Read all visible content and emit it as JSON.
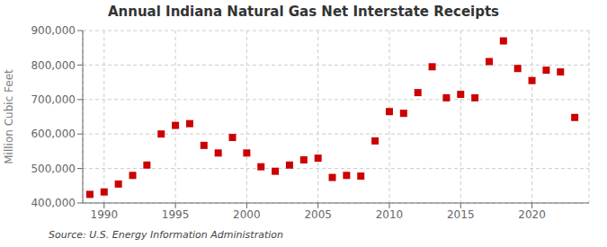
{
  "chart_data": {
    "type": "scatter",
    "title": "Annual Indiana Natural Gas Net Interstate Receipts",
    "y_label": "Million Cubic Feet",
    "annotations": [
      "Source: U.S. Energy Information Administration"
    ],
    "x": [
      1989,
      1990,
      1991,
      1992,
      1993,
      1994,
      1995,
      1996,
      1997,
      1998,
      1999,
      2000,
      2001,
      2002,
      2003,
      2004,
      2005,
      2006,
      2007,
      2008,
      2009,
      2010,
      2011,
      2012,
      2013,
      2014,
      2015,
      2016,
      2017,
      2018,
      2019,
      2020,
      2021,
      2022,
      2023
    ],
    "values": [
      425000,
      432000,
      455000,
      480000,
      510000,
      600000,
      625000,
      630000,
      567000,
      545000,
      590000,
      545000,
      505000,
      492000,
      510000,
      525000,
      530000,
      474000,
      480000,
      478000,
      580000,
      665000,
      660000,
      720000,
      795000,
      705000,
      715000,
      705000,
      810000,
      870000,
      790000,
      755000,
      785000,
      780000,
      648000
    ],
    "color": "#cc0000",
    "marker": "square",
    "xlim": [
      1988.5,
      2024
    ],
    "ylim": [
      400000,
      900000
    ],
    "xticks": [
      1990,
      1995,
      2000,
      2005,
      2010,
      2015,
      2020
    ],
    "yticks": [
      {
        "value": 400000,
        "label": "400,000"
      },
      {
        "value": 500000,
        "label": "500,000"
      },
      {
        "value": 600000,
        "label": "600,000"
      },
      {
        "value": 700000,
        "label": "700,000"
      },
      {
        "value": 800000,
        "label": "800,000"
      },
      {
        "value": 900000,
        "label": "900,000"
      }
    ],
    "grid": true
  }
}
